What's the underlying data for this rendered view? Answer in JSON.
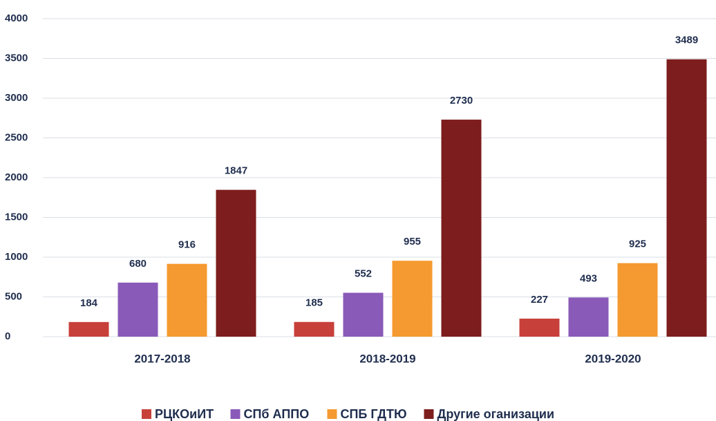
{
  "chart_data": {
    "type": "bar",
    "categories": [
      "2017-2018",
      "2018-2019",
      "2019-2020"
    ],
    "series": [
      {
        "name": "РЦКОиИТ",
        "color": "#c8403a",
        "values": [
          184,
          185,
          227
        ]
      },
      {
        "name": "СПб АППО",
        "color": "#8a5ab8",
        "values": [
          680,
          552,
          493
        ]
      },
      {
        "name": "СПБ ГДТЮ",
        "color": "#f59a30",
        "values": [
          916,
          955,
          925
        ]
      },
      {
        "name": "Другие оганизации",
        "color": "#7d1d1d",
        "values": [
          1847,
          2730,
          3489
        ]
      }
    ],
    "ylim": [
      0,
      4000
    ],
    "yticks": [
      0,
      500,
      1000,
      1500,
      2000,
      2500,
      3000,
      3500,
      4000
    ],
    "grid": true,
    "legend": "bottom"
  }
}
